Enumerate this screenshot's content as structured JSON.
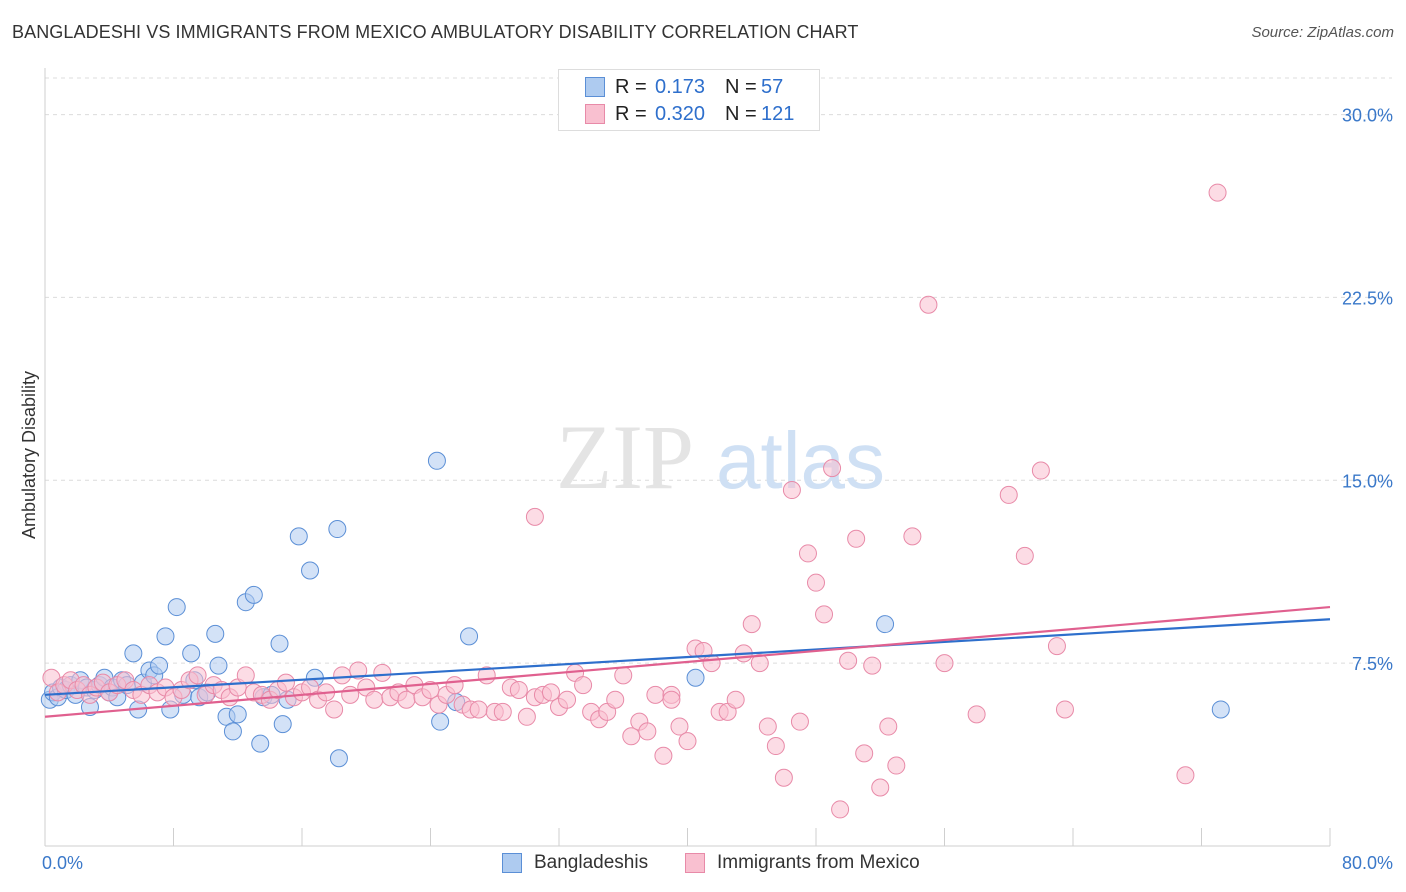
{
  "title": "BANGLADESHI VS IMMIGRANTS FROM MEXICO AMBULATORY DISABILITY CORRELATION CHART",
  "source": "Source: ZipAtlas.com",
  "watermark": {
    "zip": "ZIP",
    "atlas": "atlas"
  },
  "legend": {
    "r_label": "R =",
    "n_label": "N =",
    "series": [
      {
        "name": "Bangladeshis",
        "r": "0.173",
        "n": "57",
        "fill": "#aecbf0",
        "stroke": "#5b8fd6",
        "line": "#2e6fcc"
      },
      {
        "name": "Immigrants from Mexico",
        "r": "0.320",
        "n": "121",
        "fill": "#f9c0d0",
        "stroke": "#e88aa8",
        "line": "#e0608f"
      }
    ]
  },
  "chart_data": {
    "type": "scatter",
    "title": "BANGLADESHI VS IMMIGRANTS FROM MEXICO AMBULATORY DISABILITY CORRELATION CHART",
    "xlabel": "",
    "ylabel": "Ambulatory Disability",
    "xlim": [
      0,
      80
    ],
    "ylim": [
      0,
      31.5
    ],
    "x_tick_labels": [
      "0.0%",
      "80.0%"
    ],
    "y_ticks": [
      7.5,
      15.0,
      22.5,
      30.0
    ],
    "y_tick_labels": [
      "7.5%",
      "15.0%",
      "22.5%",
      "30.0%"
    ],
    "grid": true,
    "series": [
      {
        "name": "Bangladeshis",
        "trend": {
          "x": [
            0,
            80
          ],
          "y": [
            6.2,
            9.3
          ]
        },
        "points": [
          [
            0.3,
            6.0
          ],
          [
            0.5,
            6.3
          ],
          [
            0.8,
            6.1
          ],
          [
            1.0,
            6.5
          ],
          [
            1.3,
            6.4
          ],
          [
            1.6,
            6.6
          ],
          [
            1.9,
            6.2
          ],
          [
            2.2,
            6.8
          ],
          [
            2.6,
            6.5
          ],
          [
            2.8,
            5.7
          ],
          [
            3.1,
            6.4
          ],
          [
            3.4,
            6.6
          ],
          [
            3.7,
            6.9
          ],
          [
            4.0,
            6.3
          ],
          [
            4.2,
            6.5
          ],
          [
            4.5,
            6.1
          ],
          [
            4.8,
            6.8
          ],
          [
            5.1,
            6.6
          ],
          [
            5.5,
            7.9
          ],
          [
            5.8,
            5.6
          ],
          [
            6.1,
            6.7
          ],
          [
            6.5,
            7.2
          ],
          [
            6.8,
            7.0
          ],
          [
            7.1,
            7.4
          ],
          [
            7.5,
            8.6
          ],
          [
            7.8,
            5.6
          ],
          [
            8.2,
            9.8
          ],
          [
            8.6,
            6.2
          ],
          [
            9.1,
            7.9
          ],
          [
            9.3,
            6.8
          ],
          [
            9.6,
            6.1
          ],
          [
            10.1,
            6.3
          ],
          [
            10.6,
            8.7
          ],
          [
            10.8,
            7.4
          ],
          [
            11.3,
            5.3
          ],
          [
            11.7,
            4.7
          ],
          [
            12.0,
            5.4
          ],
          [
            12.5,
            10.0
          ],
          [
            13.0,
            10.3
          ],
          [
            13.4,
            4.2
          ],
          [
            13.6,
            6.1
          ],
          [
            14.1,
            6.2
          ],
          [
            14.6,
            8.3
          ],
          [
            14.8,
            5.0
          ],
          [
            15.1,
            6.0
          ],
          [
            15.8,
            12.7
          ],
          [
            16.5,
            11.3
          ],
          [
            16.8,
            6.9
          ],
          [
            18.2,
            13.0
          ],
          [
            18.3,
            3.6
          ],
          [
            24.4,
            15.8
          ],
          [
            24.6,
            5.1
          ],
          [
            25.6,
            5.9
          ],
          [
            26.4,
            8.6
          ],
          [
            40.5,
            6.9
          ],
          [
            52.3,
            9.1
          ],
          [
            73.2,
            5.6
          ]
        ]
      },
      {
        "name": "Immigrants from Mexico",
        "trend": {
          "x": [
            0,
            80
          ],
          "y": [
            5.3,
            9.8
          ]
        },
        "points": [
          [
            0.4,
            6.9
          ],
          [
            0.8,
            6.3
          ],
          [
            1.2,
            6.6
          ],
          [
            1.6,
            6.8
          ],
          [
            2.0,
            6.4
          ],
          [
            2.4,
            6.6
          ],
          [
            2.8,
            6.2
          ],
          [
            3.2,
            6.5
          ],
          [
            3.6,
            6.7
          ],
          [
            4.0,
            6.3
          ],
          [
            4.5,
            6.6
          ],
          [
            5.0,
            6.8
          ],
          [
            5.5,
            6.4
          ],
          [
            6.0,
            6.2
          ],
          [
            6.5,
            6.6
          ],
          [
            7.0,
            6.3
          ],
          [
            7.5,
            6.5
          ],
          [
            8.0,
            6.1
          ],
          [
            8.5,
            6.4
          ],
          [
            9.0,
            6.8
          ],
          [
            9.5,
            7.0
          ],
          [
            10.0,
            6.2
          ],
          [
            10.5,
            6.6
          ],
          [
            11.0,
            6.4
          ],
          [
            11.5,
            6.1
          ],
          [
            12.0,
            6.5
          ],
          [
            12.5,
            7.0
          ],
          [
            13.0,
            6.3
          ],
          [
            13.5,
            6.2
          ],
          [
            14.0,
            6.0
          ],
          [
            14.5,
            6.4
          ],
          [
            15.0,
            6.7
          ],
          [
            15.5,
            6.1
          ],
          [
            16.0,
            6.3
          ],
          [
            16.5,
            6.5
          ],
          [
            17.0,
            6.0
          ],
          [
            17.5,
            6.3
          ],
          [
            18.0,
            5.6
          ],
          [
            18.5,
            7.0
          ],
          [
            19.0,
            6.2
          ],
          [
            19.5,
            7.2
          ],
          [
            20.0,
            6.5
          ],
          [
            20.5,
            6.0
          ],
          [
            21.0,
            7.1
          ],
          [
            21.5,
            6.1
          ],
          [
            22.0,
            6.3
          ],
          [
            22.5,
            6.0
          ],
          [
            23.0,
            6.6
          ],
          [
            23.5,
            6.1
          ],
          [
            24.0,
            6.4
          ],
          [
            24.5,
            5.8
          ],
          [
            25.0,
            6.2
          ],
          [
            25.5,
            6.6
          ],
          [
            26.0,
            5.8
          ],
          [
            26.5,
            5.6
          ],
          [
            27.0,
            5.6
          ],
          [
            27.5,
            7.0
          ],
          [
            28.0,
            5.5
          ],
          [
            28.5,
            5.5
          ],
          [
            29.0,
            6.5
          ],
          [
            29.5,
            6.4
          ],
          [
            30.0,
            5.3
          ],
          [
            30.5,
            6.1
          ],
          [
            31.0,
            6.2
          ],
          [
            31.5,
            6.3
          ],
          [
            32.0,
            5.7
          ],
          [
            32.5,
            6.0
          ],
          [
            33.0,
            7.1
          ],
          [
            33.5,
            6.6
          ],
          [
            34.0,
            5.5
          ],
          [
            34.5,
            5.2
          ],
          [
            35.0,
            5.5
          ],
          [
            35.5,
            6.0
          ],
          [
            36.0,
            7.0
          ],
          [
            36.5,
            4.5
          ],
          [
            37.0,
            5.1
          ],
          [
            37.5,
            4.7
          ],
          [
            38.0,
            6.2
          ],
          [
            38.5,
            3.7
          ],
          [
            39.0,
            6.2
          ],
          [
            39.5,
            4.9
          ],
          [
            40.0,
            4.3
          ],
          [
            40.5,
            8.1
          ],
          [
            41.0,
            8.0
          ],
          [
            41.5,
            7.5
          ],
          [
            42.0,
            5.5
          ],
          [
            42.5,
            5.5
          ],
          [
            43.0,
            6.0
          ],
          [
            43.5,
            7.9
          ],
          [
            44.0,
            9.1
          ],
          [
            44.5,
            7.5
          ],
          [
            45.0,
            4.9
          ],
          [
            45.5,
            4.1
          ],
          [
            46.0,
            2.8
          ],
          [
            46.5,
            14.6
          ],
          [
            47.0,
            5.1
          ],
          [
            47.5,
            12.0
          ],
          [
            48.0,
            10.8
          ],
          [
            48.5,
            9.5
          ],
          [
            49.0,
            15.5
          ],
          [
            49.5,
            1.5
          ],
          [
            50.0,
            7.6
          ],
          [
            50.5,
            12.6
          ],
          [
            51.0,
            3.8
          ],
          [
            51.5,
            7.4
          ],
          [
            52.0,
            2.4
          ],
          [
            52.5,
            4.9
          ],
          [
            53.0,
            3.3
          ],
          [
            54.0,
            12.7
          ],
          [
            55.0,
            22.2
          ],
          [
            56.0,
            7.5
          ],
          [
            58.0,
            5.4
          ],
          [
            60.0,
            14.4
          ],
          [
            61.0,
            11.9
          ],
          [
            62.0,
            15.4
          ],
          [
            63.0,
            8.2
          ],
          [
            63.5,
            5.6
          ],
          [
            71.0,
            2.9
          ],
          [
            73.0,
            26.8
          ],
          [
            30.5,
            13.5
          ],
          [
            39.0,
            6.0
          ]
        ]
      }
    ]
  }
}
